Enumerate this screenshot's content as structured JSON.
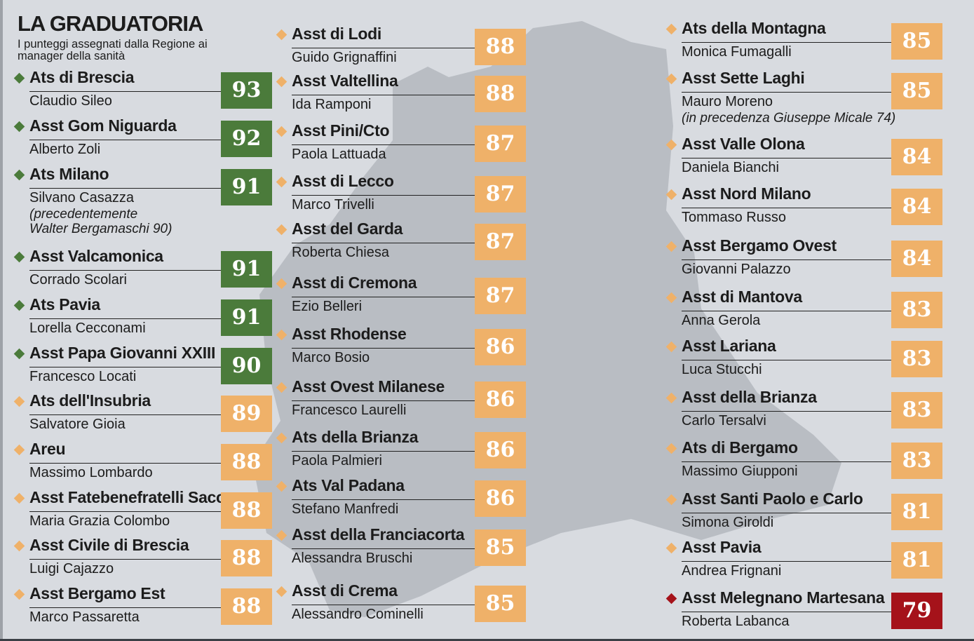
{
  "header": {
    "title": "LA GRADUATORIA",
    "subtitle": "I punteggi assegnati dalla Regione ai manager della sanità"
  },
  "colors": {
    "green": "#4b7b3b",
    "orange": "#efb169",
    "red": "#a5121a",
    "background": "#d8dbe0",
    "map": "#b9bdc3"
  },
  "columns": [
    [
      {
        "org": "Ats di Brescia",
        "manager": "Claudio Sileo",
        "score": "93",
        "tier": "green"
      },
      {
        "org": "Asst Gom Niguarda",
        "manager": "Alberto Zoli",
        "score": "92",
        "tier": "green"
      },
      {
        "org": "Ats Milano",
        "manager": "Silvano Casazza",
        "note": "(precedentemente\nWalter Bergamaschi 90)",
        "score": "91",
        "tier": "green"
      },
      {
        "org": "Asst Valcamonica",
        "manager": "Corrado Scolari",
        "score": "91",
        "tier": "green"
      },
      {
        "org": "Ats Pavia",
        "manager": "Lorella Cecconami",
        "score": "91",
        "tier": "green"
      },
      {
        "org": "Asst Papa Giovanni XXIII",
        "manager": "Francesco Locati",
        "score": "90",
        "tier": "green"
      },
      {
        "org": "Ats dell'Insubria",
        "manager": "Salvatore Gioia",
        "score": "89",
        "tier": "orange"
      },
      {
        "org": "Areu",
        "manager": "Massimo Lombardo",
        "score": "88",
        "tier": "orange"
      },
      {
        "org": "Asst Fatebenefratelli Sacco",
        "manager": "Maria Grazia Colombo",
        "score": "88",
        "tier": "orange"
      },
      {
        "org": "Asst Civile di Brescia",
        "manager": "Luigi Cajazzo",
        "score": "88",
        "tier": "orange"
      },
      {
        "org": "Asst Bergamo Est",
        "manager": "Marco Passaretta",
        "score": "88",
        "tier": "orange"
      }
    ],
    [
      {
        "org": "Asst di Lodi",
        "manager": "Guido Grignaffini",
        "score": "88",
        "tier": "orange"
      },
      {
        "org": "Asst Valtellina",
        "manager": "Ida Ramponi",
        "score": "88",
        "tier": "orange"
      },
      {
        "org": "Asst Pini/Cto",
        "manager": "Paola Lattuada",
        "score": "87",
        "tier": "orange"
      },
      {
        "org": "Asst di Lecco",
        "manager": "Marco Trivelli",
        "score": "87",
        "tier": "orange"
      },
      {
        "org": "Asst del Garda",
        "manager": "Roberta Chiesa",
        "score": "87",
        "tier": "orange"
      },
      {
        "org": "Asst di Cremona",
        "manager": "Ezio Belleri",
        "score": "87",
        "tier": "orange"
      },
      {
        "org": "Asst Rhodense",
        "manager": "Marco Bosio",
        "score": "86",
        "tier": "orange"
      },
      {
        "org": "Asst Ovest Milanese",
        "manager": "Francesco Laurelli",
        "score": "86",
        "tier": "orange"
      },
      {
        "org": "Ats della Brianza",
        "manager": "Paola Palmieri",
        "score": "86",
        "tier": "orange"
      },
      {
        "org": "Ats Val Padana",
        "manager": "Stefano Manfredi",
        "score": "86",
        "tier": "orange"
      },
      {
        "org": "Asst della Franciacorta",
        "manager": "Alessandra Bruschi",
        "score": "85",
        "tier": "orange"
      },
      {
        "org": "Asst di Crema",
        "manager": "Alessandro Cominelli",
        "score": "85",
        "tier": "orange"
      }
    ],
    [
      {
        "org": "Ats della Montagna",
        "manager": "Monica Fumagalli",
        "score": "85",
        "tier": "orange"
      },
      {
        "org": "Asst Sette Laghi",
        "manager": "Mauro Moreno",
        "note": "(in precedenza Giuseppe Micale 74)",
        "score": "85",
        "tier": "orange"
      },
      {
        "org": "Asst Valle Olona",
        "manager": "Daniela Bianchi",
        "score": "84",
        "tier": "orange"
      },
      {
        "org": "Asst Nord Milano",
        "manager": "Tommaso Russo",
        "score": "84",
        "tier": "orange"
      },
      {
        "org": "Asst Bergamo Ovest",
        "manager": "Giovanni Palazzo",
        "score": "84",
        "tier": "orange"
      },
      {
        "org": "Asst di Mantova",
        "manager": "Anna Gerola",
        "score": "83",
        "tier": "orange"
      },
      {
        "org": "Asst Lariana",
        "manager": "Luca Stucchi",
        "score": "83",
        "tier": "orange"
      },
      {
        "org": "Asst della Brianza",
        "manager": "Carlo Tersalvi",
        "score": "83",
        "tier": "orange"
      },
      {
        "org": "Ats di Bergamo",
        "manager": "Massimo Giupponi",
        "score": "83",
        "tier": "orange"
      },
      {
        "org": "Asst Santi Paolo e Carlo",
        "manager": "Simona Giroldi",
        "score": "81",
        "tier": "orange"
      },
      {
        "org": "Asst Pavia",
        "manager": "Andrea Frignani",
        "score": "81",
        "tier": "orange"
      },
      {
        "org": "Asst Melegnano Martesana",
        "manager": "Roberta Labanca",
        "score": "79",
        "tier": "red"
      }
    ]
  ]
}
